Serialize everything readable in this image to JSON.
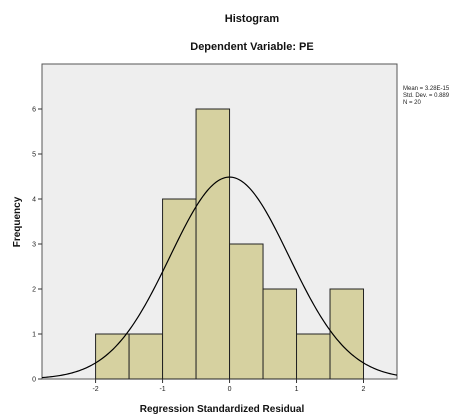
{
  "chart_data": {
    "type": "histogram",
    "title": "Histogram",
    "subtitle": "Dependent Variable: PE",
    "xlabel": "Regression Standardized Residual",
    "ylabel": "Frequency",
    "xlim": [
      -2.8,
      2.5
    ],
    "ylim": [
      0,
      7
    ],
    "x_ticks": [
      -2,
      -1,
      0,
      1,
      2
    ],
    "y_ticks": [
      0,
      1,
      2,
      3,
      4,
      5,
      6
    ],
    "bins": [
      {
        "start": -2.0,
        "end": -1.5,
        "count": 1
      },
      {
        "start": -1.5,
        "end": -1.0,
        "count": 1
      },
      {
        "start": -1.0,
        "end": -0.5,
        "count": 4
      },
      {
        "start": -0.5,
        "end": 0.0,
        "count": 6
      },
      {
        "start": 0.0,
        "end": 0.5,
        "count": 3
      },
      {
        "start": 0.5,
        "end": 1.0,
        "count": 2
      },
      {
        "start": 1.0,
        "end": 1.5,
        "count": 1
      },
      {
        "start": 1.5,
        "end": 2.0,
        "count": 2
      }
    ],
    "normal_curve": {
      "mean": 0,
      "std_dev": 0.889,
      "n": 20,
      "bin_width": 0.5
    },
    "stats_lines": [
      "Mean = 3.28E-15",
      "Std. Dev. = 0.889",
      "N = 20"
    ],
    "colors": {
      "plot_bg": "#eeeeee",
      "bar_fill": "#d6d1a0",
      "bar_stroke": "#222222",
      "curve": "#000000"
    }
  }
}
